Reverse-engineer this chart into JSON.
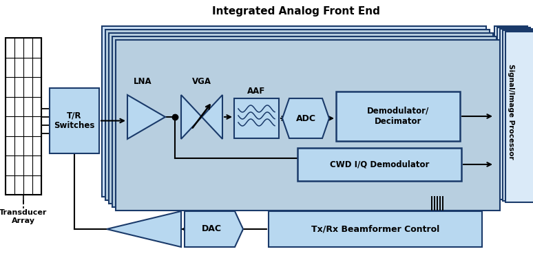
{
  "title": "Integrated Analog Front End",
  "bg_color": "#ffffff",
  "block_fill": "#b8d8f0",
  "block_edge": "#1a3a6a",
  "afe_bg": "#cce0f5",
  "fig_width": 7.74,
  "fig_height": 3.91,
  "labels": {
    "tr_switches": "T/R\nSwitches",
    "lna": "LNA",
    "vga": "VGA",
    "aaf": "AAF",
    "adc": "ADC",
    "demod": "Demodulator/\nDecimator",
    "cwd": "CWD I/Q Demodulator",
    "dac": "DAC",
    "beamformer": "Tx/Rx Beamformer Control",
    "signal_proc": "Signal/Image Processor",
    "transducer": "Transducer\nArray"
  }
}
